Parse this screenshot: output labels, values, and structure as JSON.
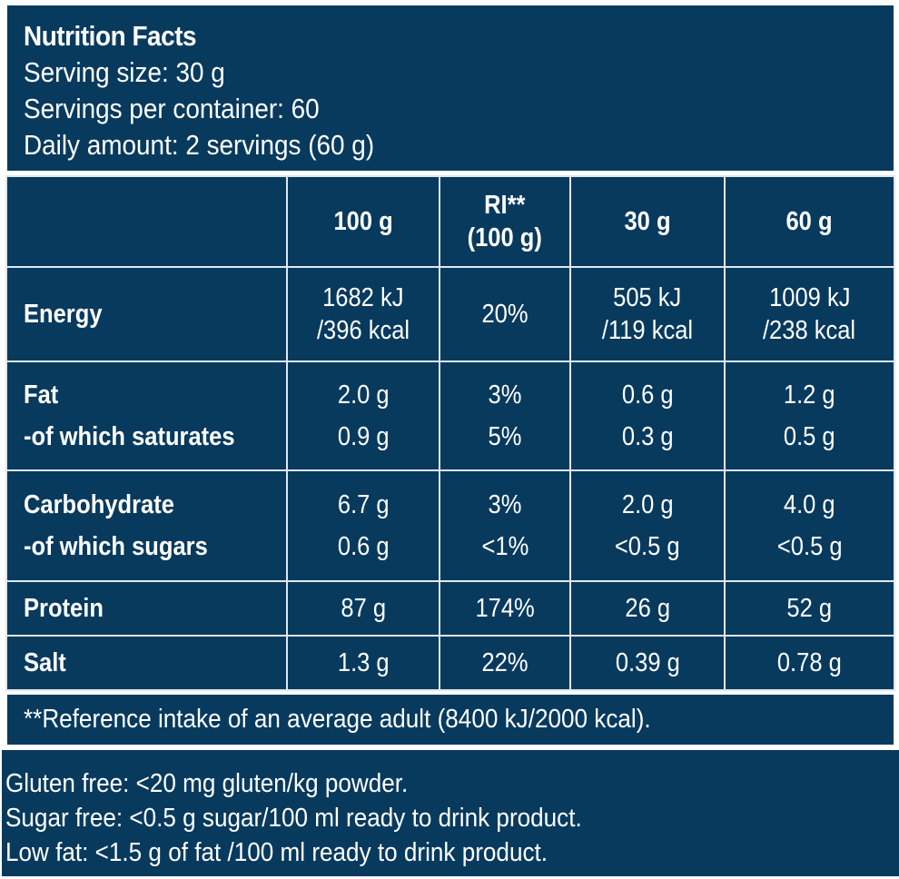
{
  "header": {
    "title": "Nutrition Facts",
    "serving_size": "Serving size: 30 g",
    "servings_per_container": "Servings per container: 60",
    "daily_amount": "Daily amount: 2 servings (60 g)"
  },
  "table": {
    "columns": [
      {
        "label": ""
      },
      {
        "label": "100 g"
      },
      {
        "label_line1": "RI**",
        "label_line2": "(100 g)"
      },
      {
        "label": "30 g"
      },
      {
        "label": "60 g"
      }
    ],
    "rows": {
      "energy": {
        "label": "Energy",
        "per100_line1": "1682 kJ",
        "per100_line2": "/396 kcal",
        "ri": "20%",
        "per30_line1": "505 kJ",
        "per30_line2": "/119 kcal",
        "per60_line1": "1009 kJ",
        "per60_line2": "/238 kcal"
      },
      "fat": {
        "label": "Fat",
        "per100": "2.0 g",
        "ri": "3%",
        "per30": "0.6 g",
        "per60": "1.2 g"
      },
      "saturates": {
        "label": "-of which saturates",
        "per100": "0.9 g",
        "ri": "5%",
        "per30": "0.3 g",
        "per60": "0.5 g"
      },
      "carbohydrate": {
        "label": "Carbohydrate",
        "per100": "6.7 g",
        "ri": "3%",
        "per30": "2.0 g",
        "per60": "4.0 g"
      },
      "sugars": {
        "label": "-of which sugars",
        "per100": "0.6 g",
        "ri": "<1%",
        "per30": "<0.5 g",
        "per60": "<0.5 g"
      },
      "protein": {
        "label": "Protein",
        "per100": "87 g",
        "ri": "174%",
        "per30": "26 g",
        "per60": "52 g"
      },
      "salt": {
        "label": "Salt",
        "per100": "1.3 g",
        "ri": "22%",
        "per30": "0.39 g",
        "per60": "0.78 g"
      }
    }
  },
  "reference_note": "**Reference intake of an average adult (8400 kJ/2000 kcal).",
  "claims": [
    "Gluten free: <20 mg gluten/kg powder.",
    "Sugar free: <0.5 g sugar/100 ml ready to drink product.",
    "Low fat: <1.5 g of fat /100 ml ready to drink product."
  ],
  "colors": {
    "background": "#083a5e",
    "border": "#dde8f1",
    "text": "#ffffff"
  }
}
